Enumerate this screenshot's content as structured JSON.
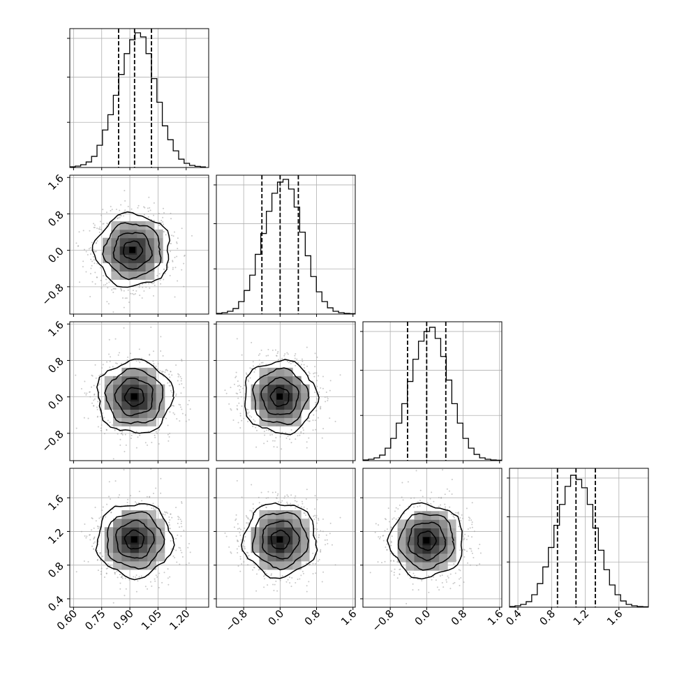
{
  "chart_data": {
    "type": "corner",
    "n_params": 4,
    "grid": true,
    "parameters": [
      {
        "index": 0,
        "range": [
          0.58,
          1.32
        ],
        "ticks": [
          0.6,
          0.75,
          0.9,
          1.05,
          1.2
        ],
        "tick_labels": [
          "0.60",
          "0.75",
          "0.90",
          "1.05",
          "1.20"
        ],
        "quantiles": [
          0.84,
          0.925,
          1.015
        ],
        "hist_x": [
          0.58,
          0.609,
          0.638,
          0.667,
          0.696,
          0.725,
          0.754,
          0.783,
          0.812,
          0.841,
          0.87,
          0.899,
          0.928,
          0.957,
          0.986,
          1.015,
          1.044,
          1.073,
          1.102,
          1.131,
          1.16,
          1.189,
          1.218,
          1.247,
          1.276,
          1.305
        ],
        "hist_y": [
          0.005,
          0.01,
          0.02,
          0.04,
          0.08,
          0.16,
          0.27,
          0.38,
          0.52,
          0.67,
          0.82,
          0.92,
          0.97,
          0.94,
          0.82,
          0.64,
          0.47,
          0.3,
          0.2,
          0.12,
          0.06,
          0.03,
          0.015,
          0.008,
          0.004
        ]
      },
      {
        "index": 1,
        "range": [
          -1.4,
          1.65
        ],
        "ticks": [
          -0.8,
          0.0,
          0.8,
          1.6
        ],
        "tick_labels": [
          "−0.8",
          "0.0",
          "0.8",
          "1.6"
        ],
        "quantiles": [
          -0.4,
          0.0,
          0.4
        ],
        "hist_x": [
          -1.4,
          -1.278,
          -1.156,
          -1.034,
          -0.912,
          -0.79,
          -0.668,
          -0.546,
          -0.424,
          -0.302,
          -0.18,
          -0.058,
          0.064,
          0.186,
          0.308,
          0.43,
          0.552,
          0.674,
          0.796,
          0.918,
          1.04,
          1.162,
          1.284,
          1.406,
          1.528,
          1.65
        ],
        "hist_y": [
          0.005,
          0.01,
          0.02,
          0.04,
          0.09,
          0.17,
          0.28,
          0.43,
          0.58,
          0.74,
          0.87,
          0.95,
          0.97,
          0.9,
          0.77,
          0.59,
          0.42,
          0.27,
          0.16,
          0.09,
          0.045,
          0.02,
          0.01,
          0.005,
          0.003
        ]
      },
      {
        "index": 2,
        "range": [
          -1.4,
          1.65
        ],
        "ticks": [
          -0.8,
          0.0,
          0.8,
          1.6
        ],
        "tick_labels": [
          "−0.8",
          "0.0",
          "0.8",
          "1.6"
        ],
        "quantiles": [
          -0.42,
          0.0,
          0.42
        ],
        "hist_x": [
          -1.4,
          -1.278,
          -1.156,
          -1.034,
          -0.912,
          -0.79,
          -0.668,
          -0.546,
          -0.424,
          -0.302,
          -0.18,
          -0.058,
          0.064,
          0.186,
          0.308,
          0.43,
          0.552,
          0.674,
          0.796,
          0.918,
          1.04,
          1.162,
          1.284,
          1.406,
          1.528,
          1.65
        ],
        "hist_y": [
          0.005,
          0.01,
          0.02,
          0.04,
          0.09,
          0.16,
          0.27,
          0.41,
          0.57,
          0.73,
          0.86,
          0.93,
          0.96,
          0.88,
          0.75,
          0.58,
          0.41,
          0.27,
          0.16,
          0.09,
          0.045,
          0.02,
          0.01,
          0.005,
          0.003
        ]
      },
      {
        "index": 3,
        "range": [
          0.3,
          1.95
        ],
        "ticks": [
          0.4,
          0.8,
          1.2,
          1.6
        ],
        "tick_labels": [
          "0.4",
          "0.8",
          "1.2",
          "1.6"
        ],
        "quantiles": [
          0.87,
          1.09,
          1.32
        ],
        "hist_x": [
          0.3,
          0.366,
          0.432,
          0.498,
          0.564,
          0.63,
          0.696,
          0.762,
          0.828,
          0.894,
          0.96,
          1.026,
          1.092,
          1.158,
          1.224,
          1.29,
          1.356,
          1.422,
          1.488,
          1.554,
          1.62,
          1.686,
          1.752,
          1.818,
          1.884,
          1.95
        ],
        "hist_y": [
          0.005,
          0.01,
          0.02,
          0.04,
          0.09,
          0.17,
          0.29,
          0.43,
          0.59,
          0.74,
          0.87,
          0.95,
          0.92,
          0.86,
          0.74,
          0.57,
          0.41,
          0.27,
          0.16,
          0.09,
          0.045,
          0.02,
          0.01,
          0.005,
          0.003
        ]
      }
    ],
    "hist_yticks": [
      0.35,
      0.7,
      1.0
    ],
    "pairs": [
      {
        "row": 1,
        "col": 0,
        "mean": [
          0.915,
          0.0
        ],
        "sd": [
          0.1,
          0.4
        ]
      },
      {
        "row": 2,
        "col": 0,
        "mean": [
          0.925,
          0.0
        ],
        "sd": [
          0.1,
          0.4
        ]
      },
      {
        "row": 2,
        "col": 1,
        "mean": [
          0.0,
          0.0
        ],
        "sd": [
          0.4,
          0.4
        ]
      },
      {
        "row": 3,
        "col": 0,
        "mean": [
          0.925,
          1.1
        ],
        "sd": [
          0.1,
          0.22
        ]
      },
      {
        "row": 3,
        "col": 1,
        "mean": [
          0.0,
          1.1
        ],
        "sd": [
          0.4,
          0.22
        ]
      },
      {
        "row": 3,
        "col": 2,
        "mean": [
          0.0,
          1.09
        ],
        "sd": [
          0.4,
          0.22
        ]
      }
    ],
    "contour_levels_sigma": [
      0.5,
      1.0,
      1.5,
      2.0
    ],
    "colors": {
      "line": "#000000",
      "scatter": "#9a9a9a",
      "grid": "#b0b0b0",
      "axis": "#000000"
    }
  }
}
